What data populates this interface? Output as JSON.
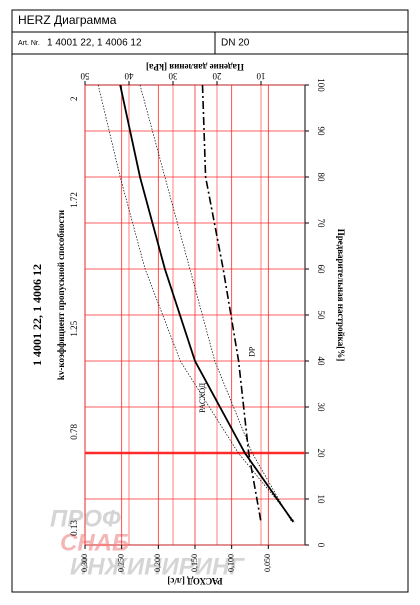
{
  "header": {
    "title": "HERZ Диаграмма",
    "art_label": "Art. Nr.",
    "art_numbers": "1 4001 22, 1 4006 12",
    "dn": "DN 20"
  },
  "chart_data": {
    "type": "line",
    "side_title": "1 4001 22, 1 4006 12",
    "kv_label": "kv-коэффициент пропускной способности",
    "xlabel": "Предварительная настройка[%]",
    "ylabel": "РАСХОД [л/с]",
    "y2label": "Падение давления [kPa]",
    "watermark": [
      "ПРОФ",
      "СНАБ",
      "ИНЖИНИРИНГ"
    ],
    "x": [
      100,
      80,
      60,
      40,
      20,
      5
    ],
    "xlim": [
      0,
      100
    ],
    "xticks": [
      0,
      10,
      20,
      30,
      40,
      50,
      60,
      70,
      80,
      90,
      100
    ],
    "ylim": [
      0,
      0.3
    ],
    "yticks": [
      {
        "value": 0.3,
        "label": "0,300"
      },
      {
        "value": 0.25,
        "label": "0,250"
      },
      {
        "value": 0.2,
        "label": "0,200"
      },
      {
        "value": 0.15,
        "label": "0,150"
      },
      {
        "value": 0.1,
        "label": "0,100"
      },
      {
        "value": 0.05,
        "label": "0,050"
      }
    ],
    "y2lim": [
      0,
      50
    ],
    "y2ticks": [
      50,
      40,
      30,
      20,
      10
    ],
    "kv_ticks": {
      "labels": [
        "2",
        "1.72",
        "1.25",
        "0.78",
        "0.13"
      ],
      "positions": [
        97,
        75,
        47,
        24.6,
        3.7
      ]
    },
    "highlight_x": 20,
    "grid": true,
    "grid_color": "#ff2a2a",
    "series": [
      {
        "name": "РАСХОД",
        "color": "#000000",
        "values": [
          0.252,
          0.225,
          0.191,
          0.15,
          0.082,
          0.016
        ]
      },
      {
        "color": "#000000",
        "style": "dotted",
        "values": [
          0.282,
          0.252,
          0.218,
          0.17,
          0.091,
          0.014
        ]
      },
      {
        "color": "#000000",
        "style": "dotted",
        "values": [
          0.225,
          0.191,
          0.157,
          0.123,
          0.072,
          0.018
        ]
      },
      {
        "name": "DP",
        "color": "#000000",
        "style": "dashdot",
        "axis": "y2",
        "values": [
          23.3,
          22.6,
          18.6,
          15.1,
          12.8,
          10.0
        ]
      }
    ]
  }
}
